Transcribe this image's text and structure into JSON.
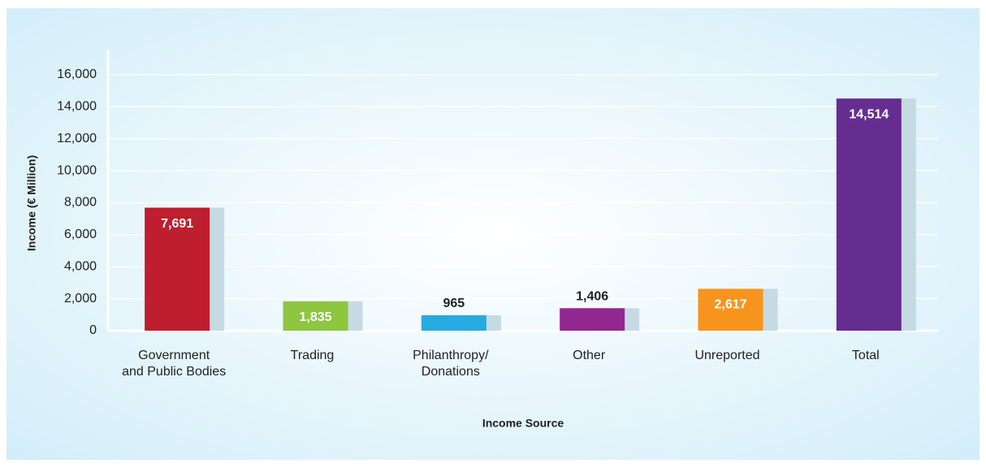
{
  "chart_data": {
    "type": "bar",
    "categories": [
      "Government\nand Public Bodies",
      "Trading",
      "Philanthropy/\nDonations",
      "Other",
      "Unreported",
      "Total"
    ],
    "values": [
      7691,
      1835,
      965,
      1406,
      2617,
      14514
    ],
    "value_labels": [
      "7,691",
      "1,835",
      "965",
      "1,406",
      "2,617",
      "14,514"
    ],
    "colors": [
      "#be1e2d",
      "#8dc63f",
      "#27aae1",
      "#92278f",
      "#f7941d",
      "#662d91"
    ],
    "ylim": [
      0,
      16000
    ],
    "yticks": [
      0,
      {
        "value": 2000,
        "label": "2,000"
      },
      {
        "value": 4000,
        "label": "4,000"
      },
      {
        "value": 6000,
        "label": "6,000"
      },
      {
        "value": 8000,
        "label": "8,000"
      },
      {
        "value": 10000,
        "label": "10,000"
      },
      {
        "value": 12000,
        "label": "12,000"
      },
      {
        "value": 14000,
        "label": "14,000"
      },
      {
        "value": 16000,
        "label": "16,000"
      }
    ],
    "y_label": "Income (€ Million)",
    "x_label": "Income Source",
    "grid": true
  }
}
